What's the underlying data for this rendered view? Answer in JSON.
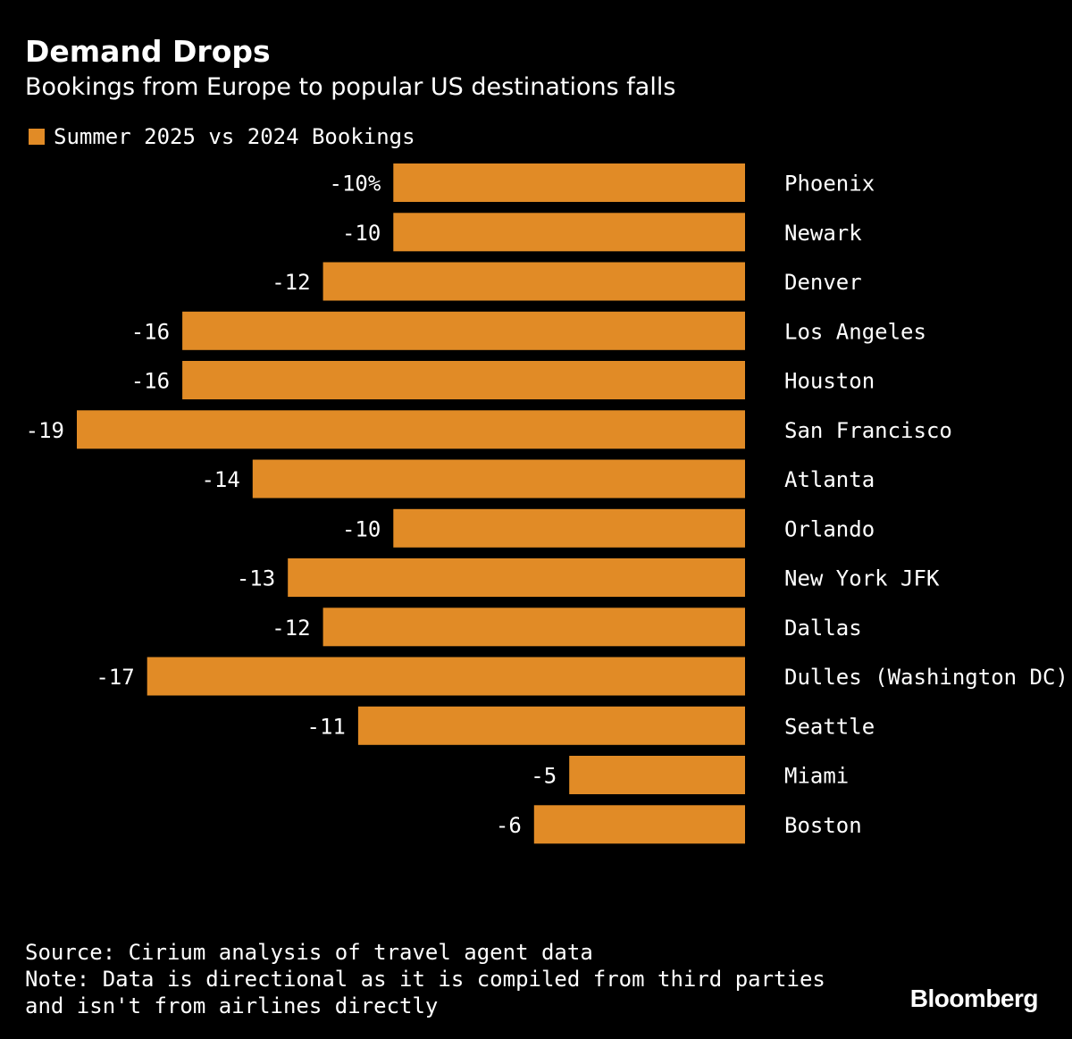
{
  "colors": {
    "background": "#000000",
    "bar": "#E18B26",
    "text": "#ffffff"
  },
  "chart_data": {
    "type": "bar",
    "orientation": "horizontal",
    "title": "Demand Drops",
    "subtitle": "Bookings from Europe to popular US destinations falls",
    "legend": [
      "Summer 2025 vs 2024 Bookings"
    ],
    "legend_position": "top-left",
    "unit_suffix_first": "%",
    "categories": [
      "Phoenix",
      "Newark",
      "Denver",
      "Los Angeles",
      "Houston",
      "San Francisco",
      "Atlanta",
      "Orlando",
      "New York JFK",
      "Dallas",
      "Dulles (Washington DC)",
      "Seattle",
      "Miami",
      "Boston"
    ],
    "series": [
      {
        "name": "Summer 2025 vs 2024 Bookings",
        "values": [
          -10,
          -10,
          -12,
          -16,
          -16,
          -19,
          -14,
          -10,
          -13,
          -12,
          -17,
          -11,
          -5,
          -6
        ]
      }
    ],
    "value_labels": [
      "-10%",
      "-10",
      "-12",
      "-16",
      "-16",
      "-19",
      "-14",
      "-10",
      "-13",
      "-12",
      "-17",
      "-11",
      "-5",
      "-6"
    ],
    "xlim": [
      -19,
      0
    ],
    "grid": false
  },
  "footer": {
    "source": "Source: Cirium analysis of travel agent data",
    "note": "Note: Data is directional as it is compiled from third parties and isn't from airlines directly"
  },
  "branding": {
    "name": "Bloomberg"
  }
}
